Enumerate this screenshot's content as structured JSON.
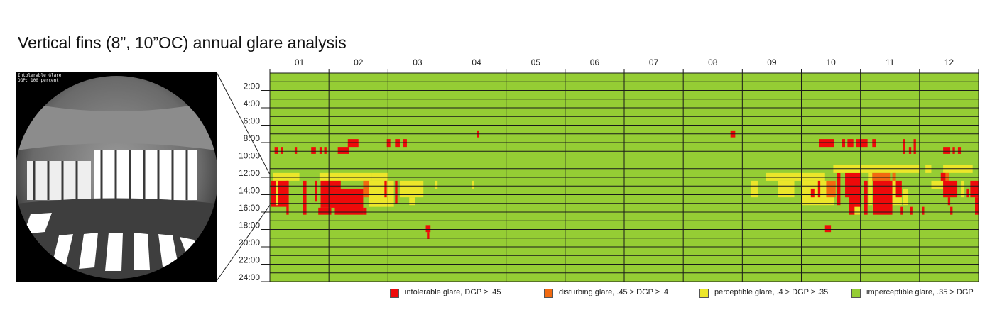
{
  "title": "Vertical fins (8”, 10”OC) annual glare analysis",
  "fisheye": {
    "caption_line1": "Intolerable Glare",
    "caption_line2": "DGP: 100 percent"
  },
  "colors": {
    "intolerable": "#ee0a0a",
    "disturbing": "#f26a10",
    "perceptible": "#ece62a",
    "imperceptible": "#95cd34",
    "grid": "#1a1a1a"
  },
  "chart_data": {
    "type": "heatmap",
    "title": "Vertical fins (8”, 10”OC) annual glare analysis",
    "x_categories": [
      "01",
      "02",
      "03",
      "04",
      "05",
      "06",
      "07",
      "08",
      "09",
      "10",
      "11",
      "12"
    ],
    "y_tick_labels": [
      "2:00",
      "4:00",
      "6:00",
      "8:00",
      "10:00",
      "12:00",
      "14:00",
      "16:00",
      "18:00",
      "20:00",
      "22:00",
      "24:00"
    ],
    "x_range_months": [
      0,
      12
    ],
    "y_range_hours": [
      0,
      24
    ],
    "background_class": "imperceptible",
    "glare_regions": [
      {
        "class": "intolerable",
        "m0": 0.08,
        "m1": 0.14,
        "h0": 8.5,
        "h1": 9.3
      },
      {
        "class": "intolerable",
        "m0": 0.18,
        "m1": 0.22,
        "h0": 8.5,
        "h1": 9.3
      },
      {
        "class": "intolerable",
        "m0": 0.42,
        "m1": 0.46,
        "h0": 8.5,
        "h1": 9.3
      },
      {
        "class": "intolerable",
        "m0": 0.7,
        "m1": 0.78,
        "h0": 8.5,
        "h1": 9.3
      },
      {
        "class": "intolerable",
        "m0": 0.84,
        "m1": 0.88,
        "h0": 8.5,
        "h1": 9.3
      },
      {
        "class": "intolerable",
        "m0": 0.92,
        "m1": 0.96,
        "h0": 8.5,
        "h1": 9.3
      },
      {
        "class": "intolerable",
        "m0": 1.15,
        "m1": 1.34,
        "h0": 8.5,
        "h1": 9.3
      },
      {
        "class": "intolerable",
        "m0": 1.32,
        "m1": 1.5,
        "h0": 7.6,
        "h1": 8.5
      },
      {
        "class": "intolerable",
        "m0": 1.98,
        "m1": 2.04,
        "h0": 7.6,
        "h1": 8.5
      },
      {
        "class": "intolerable",
        "m0": 2.12,
        "m1": 2.2,
        "h0": 7.6,
        "h1": 8.5
      },
      {
        "class": "intolerable",
        "m0": 2.26,
        "m1": 2.32,
        "h0": 7.6,
        "h1": 8.5
      },
      {
        "class": "intolerable",
        "m0": 3.5,
        "m1": 3.54,
        "h0": 6.6,
        "h1": 7.4
      },
      {
        "class": "intolerable",
        "m0": 7.8,
        "m1": 7.88,
        "h0": 6.6,
        "h1": 7.4
      },
      {
        "class": "intolerable",
        "m0": 9.3,
        "m1": 9.55,
        "h0": 7.6,
        "h1": 8.5
      },
      {
        "class": "intolerable",
        "m0": 9.68,
        "m1": 9.74,
        "h0": 7.6,
        "h1": 8.5
      },
      {
        "class": "intolerable",
        "m0": 9.78,
        "m1": 9.88,
        "h0": 7.6,
        "h1": 8.5
      },
      {
        "class": "intolerable",
        "m0": 9.92,
        "m1": 10.12,
        "h0": 7.6,
        "h1": 8.5
      },
      {
        "class": "intolerable",
        "m0": 10.2,
        "m1": 10.26,
        "h0": 7.6,
        "h1": 8.5
      },
      {
        "class": "intolerable",
        "m0": 10.72,
        "m1": 10.76,
        "h0": 7.6,
        "h1": 9.3
      },
      {
        "class": "intolerable",
        "m0": 10.82,
        "m1": 10.86,
        "h0": 8.5,
        "h1": 9.3
      },
      {
        "class": "intolerable",
        "m0": 10.9,
        "m1": 10.94,
        "h0": 7.6,
        "h1": 9.3
      },
      {
        "class": "intolerable",
        "m0": 11.4,
        "m1": 11.52,
        "h0": 8.5,
        "h1": 9.3
      },
      {
        "class": "intolerable",
        "m0": 11.56,
        "m1": 11.6,
        "h0": 8.5,
        "h1": 9.3
      },
      {
        "class": "intolerable",
        "m0": 11.65,
        "m1": 11.7,
        "h0": 8.5,
        "h1": 9.3
      },
      {
        "class": "perceptible",
        "m0": 0.06,
        "m1": 0.5,
        "h0": 11.5,
        "h1": 12.4
      },
      {
        "class": "perceptible",
        "m0": 0.84,
        "m1": 1.16,
        "h0": 11.5,
        "h1": 12.4
      },
      {
        "class": "perceptible",
        "m0": 1.16,
        "m1": 1.72,
        "h0": 11.5,
        "h1": 12.4
      },
      {
        "class": "perceptible",
        "m0": 1.72,
        "m1": 2.0,
        "h0": 11.5,
        "h1": 12.4
      },
      {
        "class": "intolerable",
        "m0": 0.02,
        "m1": 0.3,
        "h0": 12.4,
        "h1": 15.4
      },
      {
        "class": "perceptible",
        "m0": 0.1,
        "m1": 0.14,
        "h0": 12.4,
        "h1": 15.2
      },
      {
        "class": "intolerable",
        "m0": 0.28,
        "m1": 0.32,
        "h0": 12.4,
        "h1": 16.3
      },
      {
        "class": "intolerable",
        "m0": 0.56,
        "m1": 0.62,
        "h0": 12.4,
        "h1": 16.3
      },
      {
        "class": "intolerable",
        "m0": 0.76,
        "m1": 0.8,
        "h0": 12.4,
        "h1": 14.8
      },
      {
        "class": "intolerable",
        "m0": 0.86,
        "m1": 1.1,
        "h0": 12.4,
        "h1": 15.5
      },
      {
        "class": "intolerable",
        "m0": 0.82,
        "m1": 1.04,
        "h0": 15.5,
        "h1": 16.3
      },
      {
        "class": "intolerable",
        "m0": 1.1,
        "m1": 1.2,
        "h0": 12.4,
        "h1": 13.3
      },
      {
        "class": "intolerable",
        "m0": 1.1,
        "m1": 1.58,
        "h0": 13.3,
        "h1": 16.3
      },
      {
        "class": "intolerable",
        "m0": 1.58,
        "m1": 1.64,
        "h0": 15.5,
        "h1": 16.3
      },
      {
        "class": "disturbing",
        "m0": 1.58,
        "m1": 1.68,
        "h0": 12.4,
        "h1": 14.3
      },
      {
        "class": "perceptible",
        "m0": 1.68,
        "m1": 2.1,
        "h0": 12.4,
        "h1": 15.4
      },
      {
        "class": "intolerable",
        "m0": 1.94,
        "m1": 1.98,
        "h0": 12.4,
        "h1": 14.3
      },
      {
        "class": "intolerable",
        "m0": 2.12,
        "m1": 2.16,
        "h0": 12.4,
        "h1": 15.0
      },
      {
        "class": "perceptible",
        "m0": 2.2,
        "m1": 2.6,
        "h0": 12.4,
        "h1": 14.3
      },
      {
        "class": "perceptible",
        "m0": 2.36,
        "m1": 2.46,
        "h0": 14.3,
        "h1": 15.2
      },
      {
        "class": "perceptible",
        "m0": 2.8,
        "m1": 2.84,
        "h0": 12.4,
        "h1": 13.3
      },
      {
        "class": "perceptible",
        "m0": 3.42,
        "m1": 3.46,
        "h0": 12.4,
        "h1": 13.3
      },
      {
        "class": "intolerable",
        "m0": 2.64,
        "m1": 2.72,
        "h0": 17.5,
        "h1": 18.3
      },
      {
        "class": "intolerable",
        "m0": 2.66,
        "m1": 2.7,
        "h0": 18.3,
        "h1": 19.1
      },
      {
        "class": "perceptible",
        "m0": 8.4,
        "m1": 9.4,
        "h0": 11.5,
        "h1": 12.4
      },
      {
        "class": "perceptible",
        "m0": 8.14,
        "m1": 8.26,
        "h0": 12.4,
        "h1": 14.3
      },
      {
        "class": "perceptible",
        "m0": 8.6,
        "m1": 8.88,
        "h0": 12.4,
        "h1": 14.3
      },
      {
        "class": "perceptible",
        "m0": 9.0,
        "m1": 9.56,
        "h0": 12.4,
        "h1": 15.2
      },
      {
        "class": "disturbing",
        "m0": 9.42,
        "m1": 9.58,
        "h0": 12.4,
        "h1": 14.3
      },
      {
        "class": "intolerable",
        "m0": 9.16,
        "m1": 9.22,
        "h0": 13.3,
        "h1": 14.3
      },
      {
        "class": "intolerable",
        "m0": 9.28,
        "m1": 9.32,
        "h0": 12.4,
        "h1": 14.3
      },
      {
        "class": "intolerable",
        "m0": 9.6,
        "m1": 9.66,
        "h0": 11.5,
        "h1": 15.2
      },
      {
        "class": "intolerable",
        "m0": 9.74,
        "m1": 9.8,
        "h0": 11.5,
        "h1": 14.3
      },
      {
        "class": "intolerable",
        "m0": 9.8,
        "m1": 10.0,
        "h0": 11.5,
        "h1": 16.3
      },
      {
        "class": "perceptible",
        "m0": 9.54,
        "m1": 10.0,
        "h0": 10.6,
        "h1": 11.5
      },
      {
        "class": "perceptible",
        "m0": 9.9,
        "m1": 10.0,
        "h0": 15.4,
        "h1": 16.3
      },
      {
        "class": "perceptible",
        "m0": 10.0,
        "m1": 10.8,
        "h0": 10.6,
        "h1": 11.5
      },
      {
        "class": "perceptible",
        "m0": 10.14,
        "m1": 10.2,
        "h0": 11.5,
        "h1": 15.2
      },
      {
        "class": "intolerable",
        "m0": 10.06,
        "m1": 10.12,
        "h0": 12.4,
        "h1": 16.3
      },
      {
        "class": "disturbing",
        "m0": 10.2,
        "m1": 10.5,
        "h0": 11.5,
        "h1": 12.4
      },
      {
        "class": "intolerable",
        "m0": 10.22,
        "m1": 10.54,
        "h0": 12.4,
        "h1": 16.3
      },
      {
        "class": "disturbing",
        "m0": 10.54,
        "m1": 10.6,
        "h0": 11.5,
        "h1": 13.3
      },
      {
        "class": "perceptible",
        "m0": 10.54,
        "m1": 10.7,
        "h0": 12.4,
        "h1": 15.2
      },
      {
        "class": "intolerable",
        "m0": 10.6,
        "m1": 10.7,
        "h0": 12.4,
        "h1": 14.3
      },
      {
        "class": "perceptible",
        "m0": 10.72,
        "m1": 10.8,
        "h0": 13.3,
        "h1": 15.2
      },
      {
        "class": "intolerable",
        "m0": 10.68,
        "m1": 10.72,
        "h0": 15.4,
        "h1": 16.3
      },
      {
        "class": "intolerable",
        "m0": 10.84,
        "m1": 10.88,
        "h0": 15.4,
        "h1": 16.3
      },
      {
        "class": "perceptible",
        "m0": 10.8,
        "m1": 11.0,
        "h0": 10.6,
        "h1": 11.5
      },
      {
        "class": "perceptible",
        "m0": 11.1,
        "m1": 11.2,
        "h0": 10.6,
        "h1": 11.5
      },
      {
        "class": "perceptible",
        "m0": 11.4,
        "m1": 11.9,
        "h0": 10.6,
        "h1": 11.5
      },
      {
        "class": "perceptible",
        "m0": 11.2,
        "m1": 11.4,
        "h0": 12.4,
        "h1": 13.3
      },
      {
        "class": "intolerable",
        "m0": 11.36,
        "m1": 11.44,
        "h0": 11.5,
        "h1": 12.4
      },
      {
        "class": "disturbing",
        "m0": 11.44,
        "m1": 11.5,
        "h0": 11.5,
        "h1": 12.4
      },
      {
        "class": "intolerable",
        "m0": 11.4,
        "m1": 11.64,
        "h0": 12.4,
        "h1": 14.3
      },
      {
        "class": "intolerable",
        "m0": 11.48,
        "m1": 11.52,
        "h0": 14.3,
        "h1": 15.2
      },
      {
        "class": "perceptible",
        "m0": 11.7,
        "m1": 11.76,
        "h0": 12.4,
        "h1": 14.3
      },
      {
        "class": "intolerable",
        "m0": 11.8,
        "m1": 11.84,
        "h0": 13.3,
        "h1": 14.3
      },
      {
        "class": "intolerable",
        "m0": 11.86,
        "m1": 12.0,
        "h0": 12.4,
        "h1": 14.3
      },
      {
        "class": "intolerable",
        "m0": 11.94,
        "m1": 12.0,
        "h0": 14.3,
        "h1": 16.3
      },
      {
        "class": "intolerable",
        "m0": 11.52,
        "m1": 11.56,
        "h0": 15.4,
        "h1": 16.3
      },
      {
        "class": "intolerable",
        "m0": 11.04,
        "m1": 11.08,
        "h0": 15.4,
        "h1": 16.3
      },
      {
        "class": "intolerable",
        "m0": 9.4,
        "m1": 9.5,
        "h0": 17.5,
        "h1": 18.3
      }
    ],
    "legend": [
      {
        "key": "intolerable",
        "label": "intolerable glare, DGP ≥ .45"
      },
      {
        "key": "disturbing",
        "label": "disturbing glare, .45 > DGP ≥ .4"
      },
      {
        "key": "perceptible",
        "label": "perceptible glare, .4 > DGP ≥ .35"
      },
      {
        "key": "imperceptible",
        "label": "imperceptible glare, .35 > DGP"
      }
    ],
    "legend_placement": "bottom-right",
    "grid": true
  }
}
